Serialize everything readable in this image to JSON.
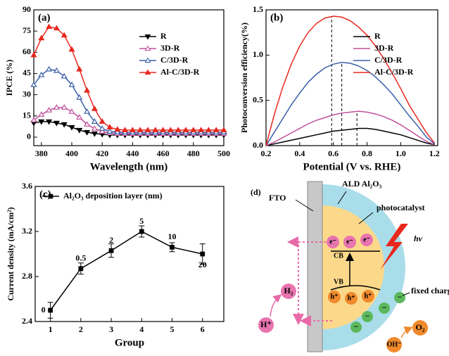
{
  "chart_data": [
    {
      "type": "line",
      "panel_label": "(a)",
      "xlabel": "Wavelength (nm)",
      "ylabel": "IPCE (%)",
      "xlim": [
        375,
        500
      ],
      "ylim": [
        -6,
        90
      ],
      "xticks": [
        380,
        400,
        420,
        440,
        460,
        480,
        500
      ],
      "yticks": [
        0,
        15,
        30,
        45,
        60,
        75,
        90
      ],
      "legend": "upper right",
      "x": [
        375,
        380,
        385,
        390,
        395,
        400,
        405,
        410,
        415,
        420,
        425,
        430,
        435,
        440,
        445,
        450,
        455,
        460,
        465,
        470,
        475,
        480,
        485,
        490,
        495,
        500
      ],
      "series": [
        {
          "name": "R",
          "color": "#000000",
          "marker": "triangle-down",
          "marker_fill": true,
          "values": [
            10,
            11,
            11,
            10,
            9,
            7,
            5,
            3.5,
            2.5,
            2,
            1.5,
            1.5,
            1.5,
            1.5,
            1.5,
            1.5,
            1.5,
            1.5,
            1.5,
            1.5,
            1.5,
            1.5,
            1.5,
            1.5,
            1.5,
            1.5
          ]
        },
        {
          "name": "3D-R",
          "color": "#c0509c",
          "marker": "triangle-up",
          "marker_fill": false,
          "values": [
            12,
            16,
            19,
            21,
            21,
            18,
            14,
            9,
            6,
            4,
            3,
            2.5,
            2.5,
            2.5,
            2.5,
            2.5,
            2.5,
            2.5,
            2.5,
            2.5,
            2.5,
            2.5,
            2.5,
            2.5,
            2.5,
            2.5
          ]
        },
        {
          "name": "C/3D-R",
          "color": "#3a5fa8",
          "marker": "triangle-up",
          "marker_fill": false,
          "values": [
            37,
            44,
            48,
            47,
            43,
            37,
            28,
            18,
            11,
            6,
            4,
            3.5,
            3.5,
            3.5,
            3.5,
            3.5,
            3.5,
            3.5,
            3.5,
            3.5,
            3.5,
            3.5,
            3.5,
            3.5,
            3.5,
            3.5
          ]
        },
        {
          "name": "Al-C/3D-R",
          "color": "#e8281e",
          "marker": "triangle-up",
          "marker_fill": true,
          "values": [
            58,
            70,
            78,
            77,
            72,
            62,
            48,
            33,
            20,
            11,
            7,
            5.5,
            5,
            5,
            5,
            5,
            5,
            5,
            5,
            5,
            5,
            5,
            5,
            5,
            5,
            5
          ]
        }
      ]
    },
    {
      "type": "line",
      "panel_label": "(b)",
      "xlabel": "Potential (V vs. RHE)",
      "ylabel": "Photoconversion efficiency(%)",
      "xlim": [
        0.2,
        1.22
      ],
      "ylim": [
        0,
        1.5
      ],
      "xticks": [
        0.2,
        0.4,
        0.6,
        0.8,
        {
          "value": 1,
          "label": "1.0"
        },
        1.2
      ],
      "yticks": [
        {
          "value": 0,
          "label": "0.0"
        },
        0.5,
        {
          "value": 1,
          "label": "1.0"
        },
        1.5
      ],
      "legend": "upper right",
      "vlines": [
        0.59,
        0.65,
        0.74
      ],
      "x": [
        0.2,
        0.25,
        0.3,
        0.35,
        0.4,
        0.45,
        0.5,
        0.55,
        0.6,
        0.65,
        0.7,
        0.75,
        0.8,
        0.85,
        0.9,
        0.95,
        1.0,
        1.05,
        1.1,
        1.15,
        1.2
      ],
      "series": [
        {
          "name": "R",
          "color": "#000000",
          "values": [
            0,
            0.02,
            0.04,
            0.06,
            0.08,
            0.1,
            0.12,
            0.14,
            0.16,
            0.17,
            0.18,
            0.19,
            0.19,
            0.18,
            0.16,
            0.14,
            0.12,
            0.09,
            0.06,
            0.03,
            0.01
          ]
        },
        {
          "name": "3D-R",
          "color": "#c0509c",
          "values": [
            0,
            0.04,
            0.09,
            0.14,
            0.19,
            0.24,
            0.28,
            0.31,
            0.34,
            0.36,
            0.37,
            0.38,
            0.37,
            0.35,
            0.32,
            0.28,
            0.23,
            0.17,
            0.11,
            0.05,
            0.01
          ]
        },
        {
          "name": "C/3D-R",
          "color": "#3a5fa8",
          "values": [
            0,
            0.15,
            0.3,
            0.45,
            0.58,
            0.7,
            0.79,
            0.86,
            0.9,
            0.92,
            0.91,
            0.88,
            0.83,
            0.76,
            0.67,
            0.57,
            0.45,
            0.33,
            0.22,
            0.1,
            0.02
          ]
        },
        {
          "name": "Al-C/3D-R",
          "color": "#e8281e",
          "values": [
            0,
            0.35,
            0.65,
            0.9,
            1.1,
            1.25,
            1.35,
            1.41,
            1.43,
            1.42,
            1.38,
            1.31,
            1.22,
            1.1,
            0.96,
            0.8,
            0.63,
            0.45,
            0.3,
            0.15,
            0.03
          ]
        }
      ]
    },
    {
      "type": "line",
      "panel_label": "(c)",
      "xlabel": "Group",
      "ylabel": "Current density (mA/cm²)",
      "xlim": [
        0.5,
        6.7
      ],
      "ylim": [
        2.4,
        3.6
      ],
      "xticks": [
        1,
        2,
        3,
        4,
        5,
        6
      ],
      "yticks": [
        2.4,
        2.8,
        3.2,
        3.6
      ],
      "legend": "upper left",
      "x": [
        1,
        2,
        3,
        4,
        5,
        6
      ],
      "point_labels": [
        "0",
        "0.5",
        "2",
        "5",
        "10",
        "20"
      ],
      "series": [
        {
          "name": "Al₂O₃ deposition layer (nm)",
          "color": "#000000",
          "marker": "square",
          "marker_fill": true,
          "values": [
            2.5,
            2.87,
            3.03,
            3.2,
            3.06,
            3.0
          ],
          "errors": [
            0.07,
            0.05,
            0.06,
            0.05,
            0.04,
            0.09
          ]
        }
      ]
    }
  ],
  "diagram": {
    "panel_label": "(d)",
    "fto": "FTO",
    "shell": "ALD Al₂O₃",
    "core": "photocatalyst",
    "light": "hν",
    "cb": "CB",
    "vb": "VB",
    "electrons": [
      "e⁻",
      "e⁻",
      "e⁻"
    ],
    "holes": [
      "h⁺",
      "h⁺",
      "h⁺"
    ],
    "fixed_charges": [
      "−",
      "−",
      "−",
      "−"
    ],
    "fixed_charge_label": "fixed charge",
    "h2": "H₂",
    "h_plus": "H⁺",
    "o2": "O₂",
    "oh": "OH⁻"
  }
}
